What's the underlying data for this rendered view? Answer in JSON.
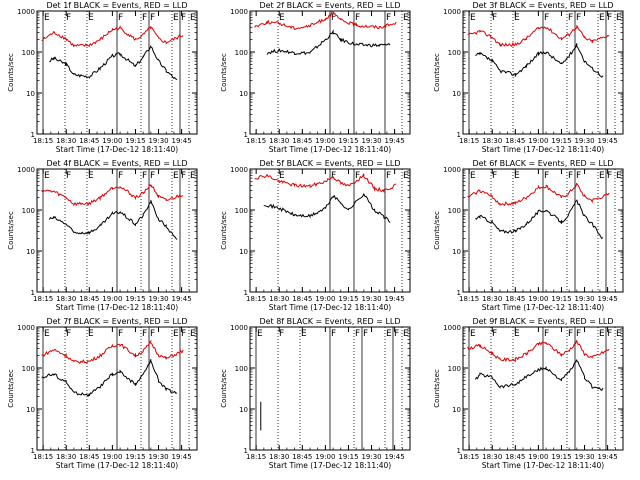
{
  "figure": {
    "start_time_label": "Start Time (17-Dec-12 18:11:40)",
    "y_axis_label": "Counts/sec",
    "colors": {
      "events": "#000000",
      "lld": "#e00000",
      "axis": "#000000",
      "background": "#ffffff"
    }
  },
  "chart_data": [
    {
      "type": "line",
      "title": "Det 1f BLACK = Events, RED = LLD",
      "yscale": "log",
      "ylim": [
        1,
        1000
      ],
      "yticks": [
        "1",
        "10",
        "100",
        "1000"
      ],
      "xticks": [
        "18:15",
        "18:30",
        "18:45",
        "19:00",
        "19:15",
        "19:30",
        "19:45"
      ],
      "xlabel": "Start Time (17-Dec-12 18:11:40)",
      "ylabel": "Counts/sec",
      "markers": [
        "E",
        "F",
        "E",
        "F",
        "F",
        "F",
        "E",
        "F",
        "E"
      ],
      "series": [
        {
          "key": "events",
          "x": [
            "18:19",
            "18:22",
            "18:30",
            "18:35",
            "18:45",
            "18:52",
            "19:00",
            "19:05",
            "19:15",
            "19:20",
            "19:25",
            "19:30",
            "19:35",
            "19:42"
          ],
          "y": [
            60,
            70,
            50,
            28,
            25,
            40,
            80,
            90,
            45,
            75,
            140,
            60,
            35,
            20
          ]
        },
        {
          "key": "lld",
          "x": [
            "18:14",
            "18:22",
            "18:30",
            "18:35",
            "18:45",
            "18:52",
            "19:00",
            "19:05",
            "19:15",
            "19:20",
            "19:25",
            "19:30",
            "19:35",
            "19:46"
          ],
          "y": [
            190,
            300,
            210,
            140,
            145,
            200,
            350,
            380,
            200,
            260,
            400,
            210,
            170,
            260
          ]
        }
      ]
    },
    {
      "type": "line",
      "title": "Det 2f BLACK = Events, RED = LLD",
      "yscale": "log",
      "ylim": [
        1,
        1000
      ],
      "yticks": [
        "1",
        "10",
        "100",
        "1000"
      ],
      "xticks": [
        "18:15",
        "18:30",
        "18:45",
        "19:00",
        "19:15",
        "19:30",
        "19:45"
      ],
      "xlabel": "Start Time (17-Dec-12 18:11:40)",
      "ylabel": "Counts/sec",
      "markers": [
        "E",
        "F",
        "F",
        "F",
        "E"
      ],
      "series": [
        {
          "key": "events",
          "x": [
            "18:22",
            "18:30",
            "18:40",
            "18:50",
            "19:00",
            "19:05",
            "19:10",
            "19:20",
            "19:35",
            "19:42"
          ],
          "y": [
            95,
            110,
            95,
            95,
            200,
            300,
            200,
            150,
            145,
            150
          ]
        },
        {
          "key": "lld",
          "x": [
            "18:14",
            "18:22",
            "18:30",
            "18:40",
            "18:50",
            "19:00",
            "19:05",
            "19:10",
            "19:20",
            "19:35",
            "19:46"
          ],
          "y": [
            420,
            530,
            500,
            380,
            430,
            650,
            900,
            600,
            450,
            400,
            500
          ]
        }
      ]
    },
    {
      "type": "line",
      "title": "Det 3f BLACK = Events, RED = LLD",
      "yscale": "log",
      "ylim": [
        1,
        1000
      ],
      "yticks": [
        "1",
        "10",
        "100",
        "1000"
      ],
      "xticks": [
        "18:15",
        "18:30",
        "18:45",
        "19:00",
        "19:15",
        "19:30",
        "19:45"
      ],
      "xlabel": "Start Time (17-Dec-12 18:11:40)",
      "ylabel": "Counts/sec",
      "markers": [
        "E",
        "F",
        "E",
        "F",
        "F",
        "F",
        "E",
        "F",
        "E"
      ],
      "series": [
        {
          "key": "events",
          "x": [
            "18:19",
            "18:22",
            "18:30",
            "18:35",
            "18:45",
            "18:52",
            "19:00",
            "19:05",
            "19:15",
            "19:20",
            "19:25",
            "19:30",
            "19:35",
            "19:42"
          ],
          "y": [
            80,
            90,
            60,
            35,
            28,
            45,
            90,
            100,
            50,
            80,
            150,
            60,
            40,
            25
          ]
        },
        {
          "key": "lld",
          "x": [
            "18:14",
            "18:22",
            "18:30",
            "18:35",
            "18:45",
            "18:52",
            "19:00",
            "19:05",
            "19:15",
            "19:20",
            "19:25",
            "19:30",
            "19:35",
            "19:46"
          ],
          "y": [
            250,
            320,
            230,
            150,
            150,
            210,
            380,
            410,
            210,
            270,
            420,
            220,
            180,
            260
          ]
        }
      ]
    },
    {
      "type": "line",
      "title": "Det 4f BLACK = Events, RED = LLD",
      "yscale": "log",
      "ylim": [
        1,
        1000
      ],
      "yticks": [
        "1",
        "10",
        "100",
        "1000"
      ],
      "xticks": [
        "18:15",
        "18:30",
        "18:45",
        "19:00",
        "19:15",
        "19:30",
        "19:45"
      ],
      "xlabel": "Start Time (17-Dec-12 18:11:40)",
      "ylabel": "Counts/sec",
      "markers": [
        "E",
        "F",
        "E",
        "F",
        "F",
        "F",
        "E",
        "F",
        "E"
      ],
      "series": [
        {
          "key": "events",
          "x": [
            "18:19",
            "18:22",
            "18:30",
            "18:35",
            "18:45",
            "18:52",
            "19:00",
            "19:05",
            "19:15",
            "19:20",
            "19:25",
            "19:30",
            "19:35",
            "19:42"
          ],
          "y": [
            60,
            65,
            45,
            28,
            28,
            40,
            80,
            90,
            45,
            75,
            160,
            60,
            40,
            18
          ]
        },
        {
          "key": "lld",
          "x": [
            "18:14",
            "18:22",
            "18:30",
            "18:35",
            "18:45",
            "18:52",
            "19:00",
            "19:05",
            "19:15",
            "19:20",
            "19:25",
            "19:30",
            "19:35",
            "19:46"
          ],
          "y": [
            300,
            280,
            200,
            140,
            145,
            200,
            350,
            380,
            200,
            260,
            420,
            210,
            170,
            240
          ]
        }
      ]
    },
    {
      "type": "line",
      "title": "Det 5f BLACK = Events, RED = LLD",
      "yscale": "log",
      "ylim": [
        1,
        1000
      ],
      "yticks": [
        "1",
        "10",
        "100",
        "1000"
      ],
      "xticks": [
        "18:15",
        "18:30",
        "18:45",
        "19:00",
        "19:15",
        "19:30",
        "19:45"
      ],
      "xlabel": "Start Time (17-Dec-12 18:11:40)",
      "ylabel": "Counts/sec",
      "markers": [
        "E",
        "F",
        "F",
        "F",
        "E"
      ],
      "series": [
        {
          "key": "events",
          "x": [
            "18:20",
            "18:30",
            "18:40",
            "18:50",
            "19:00",
            "19:05",
            "19:10",
            "19:15",
            "19:25",
            "19:32",
            "19:38",
            "19:42"
          ],
          "y": [
            140,
            110,
            75,
            70,
            110,
            220,
            150,
            100,
            250,
            95,
            70,
            50
          ]
        },
        {
          "key": "lld",
          "x": [
            "18:14",
            "18:22",
            "18:30",
            "18:40",
            "18:50",
            "19:00",
            "19:05",
            "19:10",
            "19:15",
            "19:25",
            "19:32",
            "19:38",
            "19:46"
          ],
          "y": [
            600,
            700,
            500,
            400,
            380,
            500,
            650,
            450,
            380,
            700,
            330,
            300,
            400
          ]
        }
      ]
    },
    {
      "type": "line",
      "title": "Det 6f BLACK = Events, RED = LLD",
      "yscale": "log",
      "ylim": [
        1,
        1000
      ],
      "yticks": [
        "1",
        "10",
        "100",
        "1000"
      ],
      "xticks": [
        "18:15",
        "18:30",
        "18:45",
        "19:00",
        "19:15",
        "19:30",
        "19:45"
      ],
      "xlabel": "Start Time (17-Dec-12 18:11:40)",
      "ylabel": "Counts/sec",
      "markers": [
        "E",
        "F",
        "E",
        "F",
        "F",
        "F",
        "E",
        "F",
        "E"
      ],
      "series": [
        {
          "key": "events",
          "x": [
            "18:19",
            "18:22",
            "18:30",
            "18:35",
            "18:45",
            "18:52",
            "19:00",
            "19:05",
            "19:15",
            "19:20",
            "19:25",
            "19:30",
            "19:35",
            "19:42"
          ],
          "y": [
            60,
            70,
            50,
            30,
            30,
            45,
            90,
            100,
            50,
            80,
            170,
            70,
            45,
            20
          ]
        },
        {
          "key": "lld",
          "x": [
            "18:14",
            "18:22",
            "18:30",
            "18:35",
            "18:45",
            "18:52",
            "19:00",
            "19:05",
            "19:15",
            "19:20",
            "19:25",
            "19:30",
            "19:35",
            "19:46"
          ],
          "y": [
            200,
            300,
            210,
            140,
            145,
            200,
            350,
            380,
            200,
            260,
            420,
            210,
            170,
            240
          ]
        }
      ]
    },
    {
      "type": "line",
      "title": "Det 7f BLACK = Events, RED = LLD",
      "yscale": "log",
      "ylim": [
        1,
        1000
      ],
      "yticks": [
        "1",
        "10",
        "100",
        "1000"
      ],
      "xticks": [
        "18:15",
        "18:30",
        "18:45",
        "19:00",
        "19:15",
        "19:30",
        "19:45"
      ],
      "xlabel": "Start Time (17-Dec-12 18:11:40)",
      "ylabel": "Counts/sec",
      "markers": [
        "E",
        "F",
        "E",
        "F",
        "F",
        "F",
        "E",
        "F",
        "E"
      ],
      "series": [
        {
          "key": "events",
          "x": [
            "18:14",
            "18:22",
            "18:30",
            "18:35",
            "18:45",
            "18:52",
            "19:00",
            "19:05",
            "19:15",
            "19:20",
            "19:25",
            "19:30",
            "19:35",
            "19:42"
          ],
          "y": [
            60,
            70,
            45,
            25,
            22,
            35,
            70,
            80,
            40,
            70,
            150,
            50,
            30,
            25
          ]
        },
        {
          "key": "lld",
          "x": [
            "18:14",
            "18:22",
            "18:30",
            "18:35",
            "18:45",
            "18:52",
            "19:00",
            "19:05",
            "19:15",
            "19:20",
            "19:25",
            "19:30",
            "19:35",
            "19:46"
          ],
          "y": [
            200,
            280,
            200,
            140,
            145,
            200,
            350,
            380,
            200,
            260,
            420,
            210,
            170,
            260
          ]
        }
      ]
    },
    {
      "type": "line",
      "title": "Det 8f BLACK = Events, RED = LLD",
      "yscale": "log",
      "ylim": [
        1,
        1000
      ],
      "yticks": [
        "1",
        "10",
        "100",
        "1000"
      ],
      "xticks": [
        "18:15",
        "18:30",
        "18:45",
        "19:00",
        "19:15",
        "19:30",
        "19:45"
      ],
      "xlabel": "Start Time (17-Dec-12 18:11:40)",
      "ylabel": "Counts/sec",
      "markers": [
        "E",
        "F",
        "E",
        "F",
        "F",
        "F",
        "E",
        "F",
        "E"
      ],
      "series": [
        {
          "key": "events",
          "x": [
            "18:18",
            "18:18"
          ],
          "y": [
            3,
            15
          ]
        }
      ]
    },
    {
      "type": "line",
      "title": "Det 9f BLACK = Events, RED = LLD",
      "yscale": "log",
      "ylim": [
        1,
        1000
      ],
      "yticks": [
        "1",
        "10",
        "100",
        "1000"
      ],
      "xticks": [
        "18:15",
        "18:30",
        "18:45",
        "19:00",
        "19:15",
        "19:30",
        "19:45"
      ],
      "xlabel": "Start Time (17-Dec-12 18:11:40)",
      "ylabel": "Counts/sec",
      "markers": [
        "E",
        "F",
        "E",
        "F",
        "F",
        "F",
        "E",
        "F",
        "E"
      ],
      "series": [
        {
          "key": "events",
          "x": [
            "18:19",
            "18:22",
            "18:30",
            "18:35",
            "18:45",
            "18:52",
            "19:00",
            "19:05",
            "19:15",
            "19:20",
            "19:25",
            "19:30",
            "19:35",
            "19:42"
          ],
          "y": [
            50,
            70,
            60,
            35,
            40,
            60,
            90,
            100,
            50,
            80,
            150,
            60,
            35,
            30
          ]
        },
        {
          "key": "lld",
          "x": [
            "18:14",
            "18:22",
            "18:30",
            "18:35",
            "18:45",
            "18:52",
            "19:00",
            "19:05",
            "19:15",
            "19:20",
            "19:25",
            "19:30",
            "19:35",
            "19:46"
          ],
          "y": [
            300,
            350,
            230,
            160,
            160,
            220,
            380,
            410,
            210,
            270,
            450,
            220,
            180,
            280
          ]
        }
      ]
    }
  ]
}
